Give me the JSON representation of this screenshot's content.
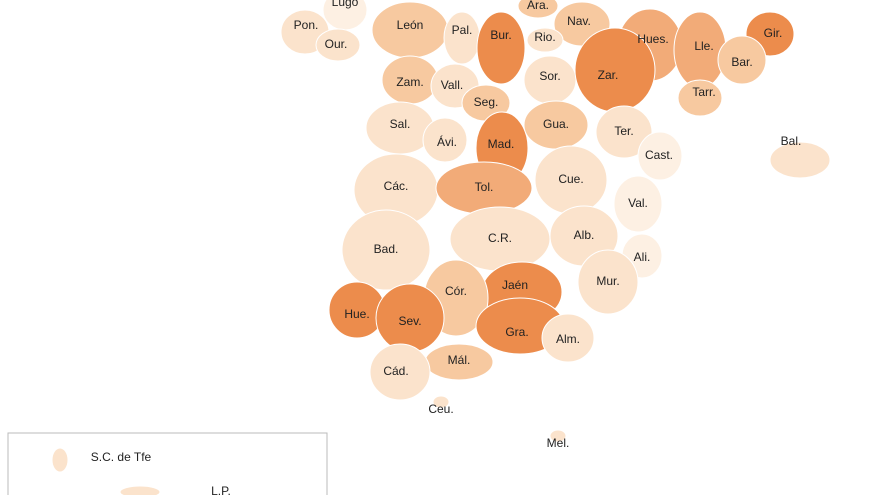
{
  "map": {
    "regions": [
      {
        "label": "Lugo",
        "color": "#fdf0e3"
      },
      {
        "label": "Pon.",
        "color": "#fbe3cc"
      },
      {
        "label": "Our.",
        "color": "#fbe3cc"
      },
      {
        "label": "León",
        "color": "#f7c9a0"
      },
      {
        "label": "Pal.",
        "color": "#fbe3cc"
      },
      {
        "label": "Bur.",
        "color": "#ec8c4c"
      },
      {
        "label": "Ara.",
        "color": "#f7c9a0"
      },
      {
        "label": "Nav.",
        "color": "#f7c9a0"
      },
      {
        "label": "Rio.",
        "color": "#fbe3cc"
      },
      {
        "label": "Hues.",
        "color": "#f2ab78"
      },
      {
        "label": "Lle.",
        "color": "#f2ab78"
      },
      {
        "label": "Gir.",
        "color": "#ec8c4c"
      },
      {
        "label": "Bar.",
        "color": "#f7c9a0"
      },
      {
        "label": "Zam.",
        "color": "#f7c9a0"
      },
      {
        "label": "Vall.",
        "color": "#fbe3cc"
      },
      {
        "label": "Sor.",
        "color": "#fbe3cc"
      },
      {
        "label": "Zar.",
        "color": "#ec8c4c"
      },
      {
        "label": "Tarr.",
        "color": "#f7c9a0"
      },
      {
        "label": "Seg.",
        "color": "#f7c9a0"
      },
      {
        "label": "Sal.",
        "color": "#fbe3cc"
      },
      {
        "label": "Ávi.",
        "color": "#fbe3cc"
      },
      {
        "label": "Mad.",
        "color": "#ec8c4c"
      },
      {
        "label": "Gua.",
        "color": "#f7c9a0"
      },
      {
        "label": "Ter.",
        "color": "#fbe3cc"
      },
      {
        "label": "Cast.",
        "color": "#fdf0e3"
      },
      {
        "label": "Bal.",
        "color": "#fbe3cc"
      },
      {
        "label": "Các.",
        "color": "#fbe3cc"
      },
      {
        "label": "Tol.",
        "color": "#f2ab78"
      },
      {
        "label": "Cue.",
        "color": "#fbe3cc"
      },
      {
        "label": "Val.",
        "color": "#fdf0e3"
      },
      {
        "label": "Bad.",
        "color": "#fbe3cc"
      },
      {
        "label": "C.R.",
        "color": "#fbe3cc"
      },
      {
        "label": "Alb.",
        "color": "#fbe3cc"
      },
      {
        "label": "Ali.",
        "color": "#fdf0e3"
      },
      {
        "label": "Mur.",
        "color": "#fbe3cc"
      },
      {
        "label": "Jaén",
        "color": "#ec8c4c"
      },
      {
        "label": "Cór.",
        "color": "#f7c9a0"
      },
      {
        "label": "Hue.",
        "color": "#ec8c4c"
      },
      {
        "label": "Sev.",
        "color": "#ec8c4c"
      },
      {
        "label": "Gra.",
        "color": "#ec8c4c"
      },
      {
        "label": "Alm.",
        "color": "#fbe3cc"
      },
      {
        "label": "Mál.",
        "color": "#f7c9a0"
      },
      {
        "label": "Cád.",
        "color": "#fbe3cc"
      },
      {
        "label": "Ceu.",
        "color": "#fbe3cc"
      },
      {
        "label": "Mel.",
        "color": "#fbe3cc"
      },
      {
        "label": "S.C. de Tfe",
        "color": "#fbe3cc"
      },
      {
        "label": "L.P.",
        "color": "#fbe3cc"
      }
    ]
  }
}
